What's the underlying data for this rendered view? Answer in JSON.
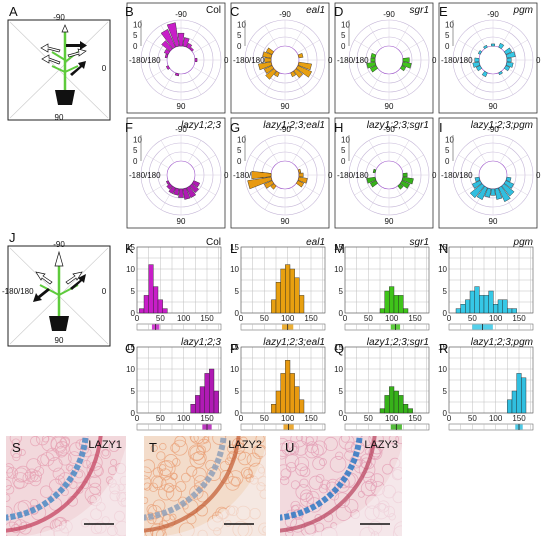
{
  "panel_letters": [
    "A",
    "B",
    "C",
    "D",
    "E",
    "F",
    "G",
    "H",
    "I",
    "J",
    "K",
    "L",
    "M",
    "N",
    "O",
    "P",
    "Q",
    "R",
    "S",
    "T",
    "U"
  ],
  "angle_labels": {
    "top": "-90",
    "left": "-180/180",
    "right": "0",
    "bottom": "90"
  },
  "colors": {
    "col": "#c81ec8",
    "eal1": "#e8a010",
    "sgr1": "#3fc41a",
    "pgm": "#36c8e6",
    "lazy": "#b01ab4",
    "lazy_eal1": "#e89a10",
    "lazy_sgr1": "#37b21a",
    "lazy_pgm": "#30bfe0"
  },
  "polar_panels": [
    {
      "letter": "B",
      "title": "Col",
      "italic": false,
      "color": "#c81ec8",
      "max": 12,
      "ticks": [
        "0",
        "5",
        "10"
      ],
      "bins": [
        {
          "a": -165,
          "r": 1
        },
        {
          "a": -150,
          "r": 2
        },
        {
          "a": -135,
          "r": 5
        },
        {
          "a": -120,
          "r": 9
        },
        {
          "a": -105,
          "r": 11
        },
        {
          "a": -90,
          "r": 6
        },
        {
          "a": -75,
          "r": 4
        },
        {
          "a": -60,
          "r": 2
        },
        {
          "a": -45,
          "r": 1
        },
        {
          "a": 0,
          "r": 1
        },
        {
          "a": 105,
          "r": 1
        },
        {
          "a": 150,
          "r": 1
        }
      ]
    },
    {
      "letter": "C",
      "title": "eal1",
      "italic": true,
      "color": "#e8a010",
      "max": 12,
      "ticks": [
        "0",
        "5",
        "10"
      ],
      "bins": [
        {
          "a": -180,
          "r": 3
        },
        {
          "a": -165,
          "r": 4
        },
        {
          "a": -150,
          "r": 3
        },
        {
          "a": -15,
          "r": 2
        },
        {
          "a": 15,
          "r": 6
        },
        {
          "a": 30,
          "r": 7
        },
        {
          "a": 45,
          "r": 4
        },
        {
          "a": 60,
          "r": 2
        },
        {
          "a": 120,
          "r": 2
        },
        {
          "a": 135,
          "r": 5
        },
        {
          "a": 150,
          "r": 4
        },
        {
          "a": 165,
          "r": 6
        }
      ]
    },
    {
      "letter": "D",
      "title": "sgr1",
      "italic": true,
      "color": "#3fc41a",
      "max": 12,
      "ticks": [
        "0",
        "5",
        "10"
      ],
      "bins": [
        {
          "a": -180,
          "r": 2
        },
        {
          "a": -165,
          "r": 2
        },
        {
          "a": 0,
          "r": 3
        },
        {
          "a": 15,
          "r": 4
        },
        {
          "a": 30,
          "r": 2
        },
        {
          "a": 150,
          "r": 3
        },
        {
          "a": 165,
          "r": 4
        }
      ]
    },
    {
      "letter": "E",
      "title": "pgm",
      "italic": true,
      "color": "#36c8e6",
      "max": 12,
      "ticks": [
        "0",
        "5",
        "10"
      ],
      "bins": [
        {
          "a": -180,
          "r": 2
        },
        {
          "a": -150,
          "r": 1
        },
        {
          "a": -120,
          "r": 1
        },
        {
          "a": -90,
          "r": 1
        },
        {
          "a": -60,
          "r": 2
        },
        {
          "a": -30,
          "r": 3
        },
        {
          "a": -15,
          "r": 4
        },
        {
          "a": 0,
          "r": 2
        },
        {
          "a": 15,
          "r": 3
        },
        {
          "a": 30,
          "r": 2
        },
        {
          "a": 60,
          "r": 1
        },
        {
          "a": 120,
          "r": 2
        },
        {
          "a": 150,
          "r": 2
        },
        {
          "a": 165,
          "r": 3
        }
      ]
    },
    {
      "letter": "F",
      "title": "lazy1;2;3",
      "italic": true,
      "color": "#b01ab4",
      "max": 12,
      "ticks": [
        "0",
        "5",
        "10"
      ],
      "bins": [
        {
          "a": 30,
          "r": 3
        },
        {
          "a": 45,
          "r": 4
        },
        {
          "a": 60,
          "r": 5
        },
        {
          "a": 75,
          "r": 5
        },
        {
          "a": 90,
          "r": 4
        },
        {
          "a": 105,
          "r": 3
        },
        {
          "a": 120,
          "r": 3
        },
        {
          "a": 135,
          "r": 2
        },
        {
          "a": 150,
          "r": 1
        }
      ]
    },
    {
      "letter": "G",
      "title": "lazy1;2;3;eal1",
      "italic": true,
      "color": "#e89a10",
      "max": 12,
      "ticks": [
        "0",
        "5",
        "10"
      ],
      "bins": [
        {
          "a": -180,
          "r": 5
        },
        {
          "a": 180,
          "r": 9
        },
        {
          "a": 165,
          "r": 11
        },
        {
          "a": 150,
          "r": 4
        },
        {
          "a": 135,
          "r": 2
        },
        {
          "a": 30,
          "r": 3
        },
        {
          "a": 15,
          "r": 4
        },
        {
          "a": 0,
          "r": 2
        },
        {
          "a": -15,
          "r": 1
        }
      ]
    },
    {
      "letter": "H",
      "title": "lazy1;2;3;sgr1",
      "italic": true,
      "color": "#37b21a",
      "max": 12,
      "ticks": [
        "0",
        "5",
        "10"
      ],
      "bins": [
        {
          "a": 0,
          "r": 2
        },
        {
          "a": 15,
          "r": 5
        },
        {
          "a": 30,
          "r": 4
        },
        {
          "a": 45,
          "r": 2
        },
        {
          "a": 150,
          "r": 3
        },
        {
          "a": 165,
          "r": 4
        },
        {
          "a": -165,
          "r": 1
        }
      ]
    },
    {
      "letter": "I",
      "title": "lazy1;2;3;pgm",
      "italic": true,
      "color": "#30bfe0",
      "max": 12,
      "ticks": [
        "0",
        "5",
        "10"
      ],
      "bins": [
        {
          "a": 15,
          "r": 2
        },
        {
          "a": 30,
          "r": 4
        },
        {
          "a": 45,
          "r": 6
        },
        {
          "a": 60,
          "r": 7
        },
        {
          "a": 75,
          "r": 5
        },
        {
          "a": 90,
          "r": 3
        },
        {
          "a": 105,
          "r": 4
        },
        {
          "a": 120,
          "r": 6
        },
        {
          "a": 135,
          "r": 7
        },
        {
          "a": 150,
          "r": 4
        },
        {
          "a": 165,
          "r": 2
        }
      ]
    }
  ],
  "chart_data": [
    {
      "type": "bar",
      "panel": "K",
      "title": "Col",
      "italic": false,
      "color": "#c81ec8",
      "xlim": [
        0,
        180
      ],
      "ylim": [
        0,
        15
      ],
      "xticks": [
        "0",
        "50",
        "100",
        "150"
      ],
      "yticks": [
        "0",
        "5",
        "10",
        "15"
      ],
      "bins": [
        10,
        20,
        30,
        40,
        50,
        60
      ],
      "values": [
        1,
        4,
        11,
        6,
        3,
        1
      ],
      "mean": 40,
      "sd": 8
    },
    {
      "type": "bar",
      "panel": "L",
      "title": "eal1",
      "italic": true,
      "color": "#e8a010",
      "xlim": [
        0,
        180
      ],
      "ylim": [
        0,
        15
      ],
      "xticks": [
        "0",
        "50",
        "100",
        "150"
      ],
      "yticks": [
        "0",
        "5",
        "10",
        "15"
      ],
      "bins": [
        70,
        80,
        90,
        100,
        110,
        120,
        130
      ],
      "values": [
        3,
        7,
        10,
        11,
        10,
        8,
        4
      ],
      "mean": 100,
      "sd": 12
    },
    {
      "type": "bar",
      "panel": "M",
      "title": "sgr1",
      "italic": true,
      "color": "#3fc41a",
      "xlim": [
        0,
        180
      ],
      "ylim": [
        0,
        15
      ],
      "xticks": [
        "0",
        "50",
        "100",
        "150"
      ],
      "yticks": [
        "0",
        "5",
        "10",
        "15"
      ],
      "bins": [
        80,
        90,
        100,
        110,
        120,
        130
      ],
      "values": [
        1,
        5,
        6,
        4,
        4,
        1
      ],
      "mean": 108,
      "sd": 10
    },
    {
      "type": "bar",
      "panel": "N",
      "title": "pgm",
      "italic": true,
      "color": "#36c8e6",
      "xlim": [
        0,
        180
      ],
      "ylim": [
        0,
        15
      ],
      "xticks": [
        "0",
        "50",
        "100",
        "150"
      ],
      "yticks": [
        "0",
        "5",
        "10",
        "15"
      ],
      "bins": [
        20,
        30,
        40,
        50,
        60,
        70,
        80,
        90,
        100,
        110,
        120,
        130,
        140
      ],
      "values": [
        1,
        2,
        3,
        5,
        6,
        4,
        4,
        5,
        2,
        3,
        3,
        1,
        1
      ],
      "mean": 72,
      "sd": 22
    },
    {
      "type": "bar",
      "panel": "O",
      "title": "lazy1;2;3",
      "italic": true,
      "color": "#b01ab4",
      "xlim": [
        0,
        180
      ],
      "ylim": [
        0,
        15
      ],
      "xticks": [
        "0",
        "50",
        "100",
        "150"
      ],
      "yticks": [
        "0",
        "5",
        "10",
        "15"
      ],
      "bins": [
        120,
        130,
        140,
        150,
        160,
        170
      ],
      "values": [
        2,
        4,
        6,
        9,
        10,
        5
      ],
      "mean": 150,
      "sd": 10
    },
    {
      "type": "bar",
      "panel": "P",
      "title": "lazy1;2;3;eal1",
      "italic": true,
      "color": "#e89a10",
      "xlim": [
        0,
        180
      ],
      "ylim": [
        0,
        15
      ],
      "xticks": [
        "0",
        "50",
        "100",
        "150"
      ],
      "yticks": [
        "0",
        "5",
        "10",
        "15"
      ],
      "bins": [
        70,
        80,
        90,
        100,
        110,
        120,
        130
      ],
      "values": [
        2,
        5,
        9,
        12,
        9,
        6,
        3
      ],
      "mean": 102,
      "sd": 11
    },
    {
      "type": "bar",
      "panel": "Q",
      "title": "lazy1;2;3;sgr1",
      "italic": true,
      "color": "#37b21a",
      "xlim": [
        0,
        180
      ],
      "ylim": [
        0,
        15
      ],
      "xticks": [
        "0",
        "50",
        "100",
        "150"
      ],
      "yticks": [
        "0",
        "5",
        "10",
        "15"
      ],
      "bins": [
        80,
        90,
        100,
        110,
        120,
        130,
        140
      ],
      "values": [
        1,
        4,
        6,
        5,
        4,
        2,
        1
      ],
      "mean": 110,
      "sd": 12
    },
    {
      "type": "bar",
      "panel": "R",
      "title": "lazy1;2;3;pgm",
      "italic": true,
      "color": "#30bfe0",
      "xlim": [
        0,
        180
      ],
      "ylim": [
        0,
        15
      ],
      "xticks": [
        "0",
        "50",
        "100",
        "150"
      ],
      "yticks": [
        "0",
        "5",
        "10",
        "15"
      ],
      "bins": [
        130,
        140,
        150,
        160
      ],
      "values": [
        3,
        5,
        9,
        8
      ],
      "mean": 150,
      "sd": 8
    }
  ],
  "photos": [
    {
      "letter": "S",
      "label": "LAZY1",
      "bg": "#f2d8dc",
      "cells": "#e6a2b4",
      "stain": "#4a8ac4",
      "band": "#c23a58"
    },
    {
      "letter": "T",
      "label": "LAZY2",
      "bg": "#f3dcca",
      "cells": "#eaa27a",
      "stain": "#8fa0b8",
      "band": "#c25a30"
    },
    {
      "letter": "U",
      "label": "LAZY3",
      "bg": "#f2dade",
      "cells": "#e4a0b6",
      "stain": "#2e78c4",
      "band": "#b8405c"
    }
  ]
}
